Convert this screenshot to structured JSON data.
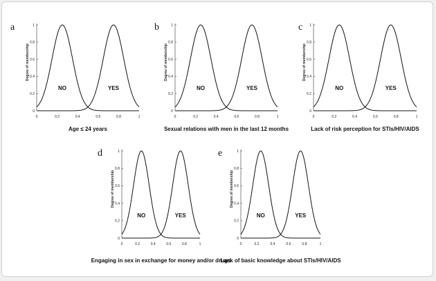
{
  "figure": {
    "panels_label_color": "#111111"
  },
  "chart_data": [
    {
      "type": "line",
      "panel": "a",
      "xlabel": "Age ≤ 24 years",
      "ylabel": "Degree of membership",
      "xlim": [
        0,
        1
      ],
      "ylim": [
        0,
        1
      ],
      "xticks": [
        "0",
        "0.2",
        "0.4",
        "0.6",
        "0.8",
        "1"
      ],
      "yticks": [
        "0",
        "0.2",
        "0.4",
        "0.6",
        "0.8",
        "1"
      ],
      "series": [
        {
          "name": "NO",
          "type": "gaussian",
          "center": 0.25,
          "sigma": 0.1
        },
        {
          "name": "YES",
          "type": "gaussian",
          "center": 0.75,
          "sigma": 0.1
        }
      ]
    },
    {
      "type": "line",
      "panel": "b",
      "xlabel": "Sexual relations with men in the last 12 months",
      "ylabel": "Degree of membership",
      "xlim": [
        0,
        1
      ],
      "ylim": [
        0,
        1
      ],
      "xticks": [
        "0",
        "0.2",
        "0.4",
        "0.6",
        "0.8",
        "1"
      ],
      "yticks": [
        "0",
        "0.2",
        "0.4",
        "0.6",
        "0.8",
        "1"
      ],
      "series": [
        {
          "name": "NO",
          "type": "gaussian",
          "center": 0.25,
          "sigma": 0.1
        },
        {
          "name": "YES",
          "type": "gaussian",
          "center": 0.75,
          "sigma": 0.1
        }
      ]
    },
    {
      "type": "line",
      "panel": "c",
      "xlabel": "Lack of risk perception for STIs/HIV/AIDS",
      "ylabel": "Degree of membership",
      "xlim": [
        0,
        1
      ],
      "ylim": [
        0,
        1
      ],
      "xticks": [
        "0",
        "0.2",
        "0.4",
        "0.6",
        "0.8",
        "1"
      ],
      "yticks": [
        "0",
        "0.2",
        "0.4",
        "0.6",
        "0.8",
        "1"
      ],
      "series": [
        {
          "name": "NO",
          "type": "gaussian",
          "center": 0.25,
          "sigma": 0.1
        },
        {
          "name": "YES",
          "type": "gaussian",
          "center": 0.75,
          "sigma": 0.1
        }
      ]
    },
    {
      "type": "line",
      "panel": "d",
      "xlabel": "Engaging in sex in exchange for money and/or drugs",
      "ylabel": "Degree of membership",
      "xlim": [
        0,
        1
      ],
      "ylim": [
        0,
        1
      ],
      "xticks": [
        "0",
        "0.2",
        "0.4",
        "0.6",
        "0.8",
        "1"
      ],
      "yticks": [
        "0",
        "0.2",
        "0.4",
        "0.6",
        "0.8",
        "1"
      ],
      "series": [
        {
          "name": "NO",
          "type": "gaussian",
          "center": 0.25,
          "sigma": 0.1
        },
        {
          "name": "YES",
          "type": "gaussian",
          "center": 0.75,
          "sigma": 0.1
        }
      ]
    },
    {
      "type": "line",
      "panel": "e",
      "xlabel": "Lack of basic knowledge about STIs/HIV/AIDS",
      "ylabel": "Degree of membership",
      "xlim": [
        0,
        1
      ],
      "ylim": [
        0,
        1
      ],
      "xticks": [
        "0",
        "0.2",
        "0.4",
        "0.6",
        "0.8",
        "1"
      ],
      "yticks": [
        "0",
        "0.2",
        "0.4",
        "0.6",
        "0.8",
        "1"
      ],
      "series": [
        {
          "name": "NO",
          "type": "gaussian",
          "center": 0.25,
          "sigma": 0.1
        },
        {
          "name": "YES",
          "type": "gaussian",
          "center": 0.75,
          "sigma": 0.1
        }
      ]
    }
  ]
}
